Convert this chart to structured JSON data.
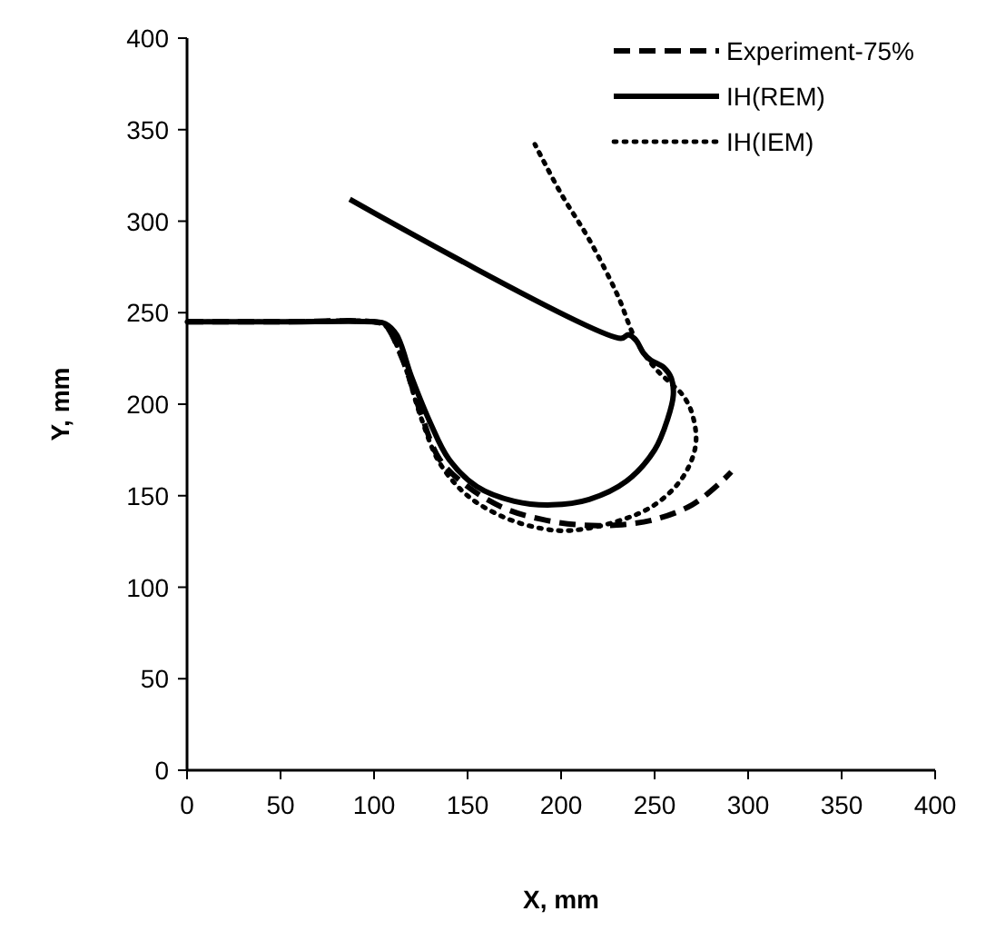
{
  "chart_data": {
    "type": "line",
    "xlabel": "X, mm",
    "ylabel": "Y, mm",
    "xlim": [
      0,
      400
    ],
    "ylim": [
      0,
      400
    ],
    "xticks": [
      0,
      50,
      100,
      150,
      200,
      250,
      300,
      350,
      400
    ],
    "yticks": [
      0,
      50,
      100,
      150,
      200,
      250,
      300,
      350,
      400
    ],
    "grid": false,
    "legend": "top right",
    "series": [
      {
        "name": "Experiment-75%",
        "color": "#000000",
        "line_style": "dashed",
        "x": [
          0,
          50,
          100,
          106,
          115,
          125,
          135,
          150,
          170,
          190,
          210,
          230,
          250,
          270,
          285,
          291
        ],
        "values": [
          245,
          245,
          245,
          243,
          225,
          195,
          170,
          155,
          143,
          137,
          134,
          134,
          137,
          145,
          157,
          163
        ]
      },
      {
        "name": "IH(REM)",
        "color": "#000000",
        "line_style": "solid",
        "x": [
          0,
          50,
          100,
          106,
          112,
          120,
          130,
          140,
          155,
          175,
          195,
          215,
          235,
          250,
          257,
          260,
          259,
          255,
          248,
          244,
          240,
          236,
          232,
          87
        ],
        "values": [
          245,
          245,
          245,
          244,
          238,
          215,
          190,
          170,
          155,
          147,
          145,
          148,
          158,
          175,
          192,
          205,
          214,
          220,
          224,
          228,
          235,
          238,
          236,
          312
        ]
      },
      {
        "name": "IH(IEM)",
        "color": "#000000",
        "line_style": "dotted",
        "x": [
          0,
          50,
          100,
          106,
          115,
          125,
          135,
          150,
          170,
          190,
          205,
          230,
          250,
          265,
          272,
          270,
          265,
          258,
          250,
          240,
          230,
          215,
          200,
          186
        ],
        "values": [
          245,
          245,
          245,
          243,
          225,
          193,
          168,
          150,
          138,
          132,
          131,
          136,
          145,
          160,
          178,
          195,
          205,
          212,
          220,
          235,
          260,
          290,
          315,
          342
        ]
      }
    ]
  }
}
